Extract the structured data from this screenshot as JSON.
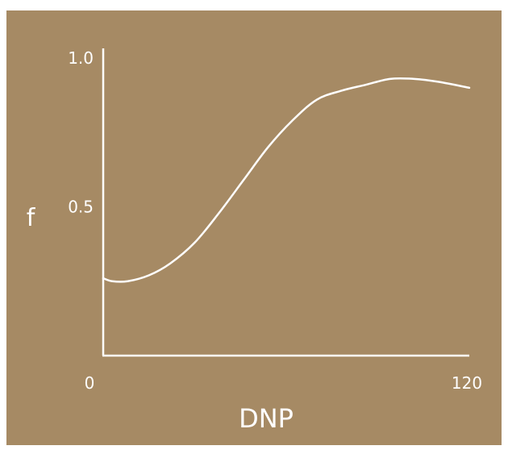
{
  "colors": {
    "background": "#A68A64",
    "foreground": "#FFFFFF"
  },
  "chart_data": {
    "type": "line",
    "title": "",
    "xlabel": "DNP",
    "ylabel": "f",
    "xlim": [
      0,
      120
    ],
    "ylim": [
      0.0,
      1.0
    ],
    "x_ticks": [
      0,
      120
    ],
    "x_tick_labels": [
      "0",
      "120"
    ],
    "y_ticks": [
      0.5,
      1.0
    ],
    "y_tick_labels": [
      "0.5",
      "1.0"
    ],
    "grid": false,
    "legend": "none",
    "series": [
      {
        "x": [
          0,
          3,
          8,
          15,
          22,
          30,
          38,
          46,
          54,
          62,
          70,
          78,
          86,
          94,
          102,
          110,
          120
        ],
        "y": [
          0.26,
          0.25,
          0.25,
          0.27,
          0.31,
          0.38,
          0.48,
          0.59,
          0.7,
          0.79,
          0.86,
          0.89,
          0.91,
          0.93,
          0.93,
          0.92,
          0.9
        ]
      }
    ]
  }
}
